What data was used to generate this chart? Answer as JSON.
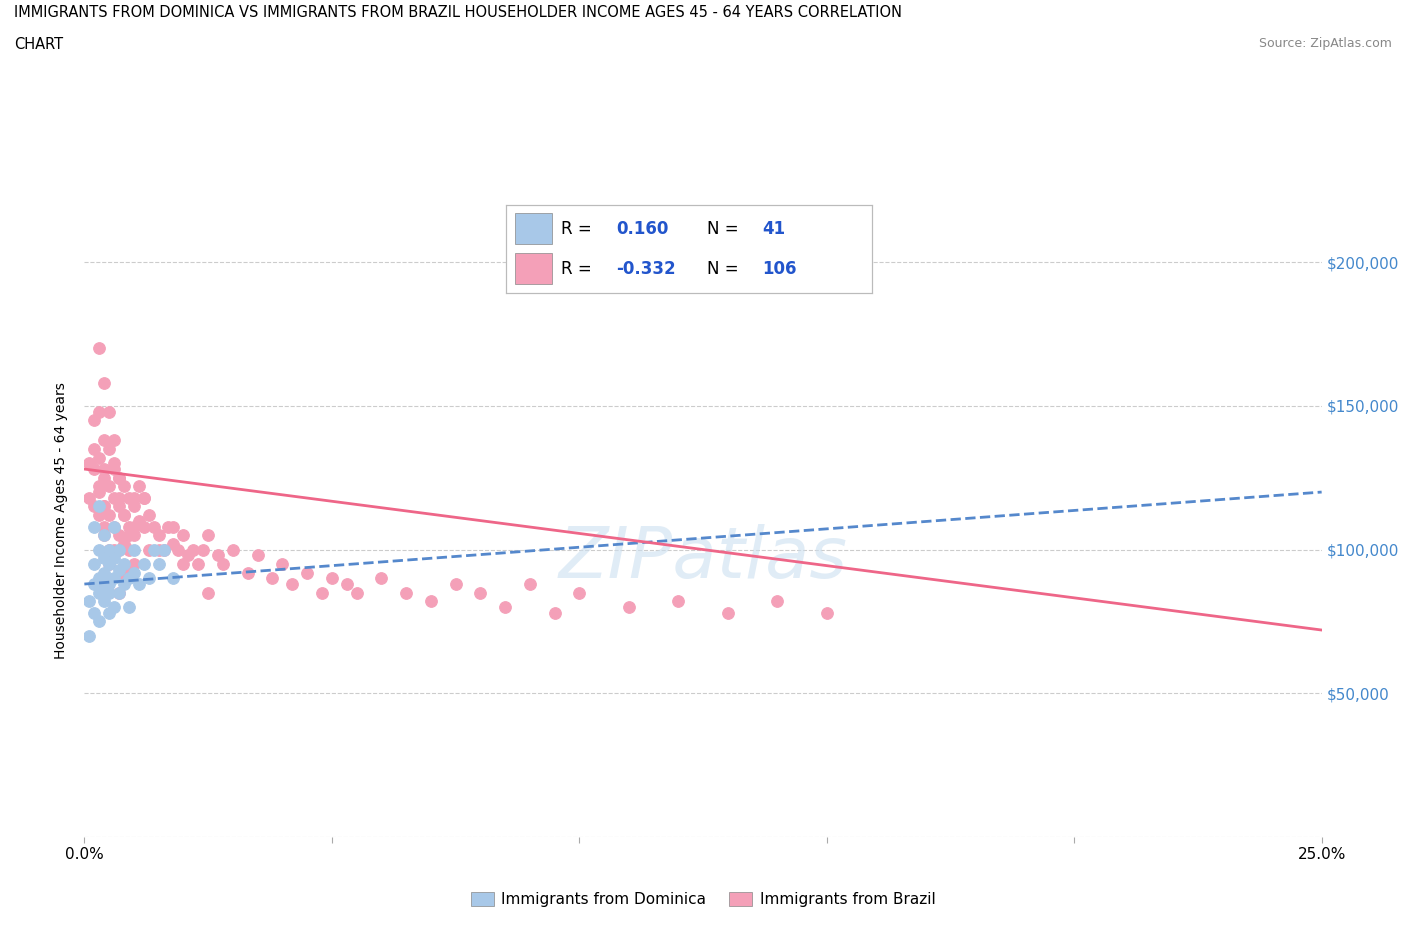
{
  "title_line1": "IMMIGRANTS FROM DOMINICA VS IMMIGRANTS FROM BRAZIL HOUSEHOLDER INCOME AGES 45 - 64 YEARS CORRELATION",
  "title_line2": "CHART",
  "source_text": "Source: ZipAtlas.com",
  "ylabel": "Householder Income Ages 45 - 64 years",
  "xlim": [
    0.0,
    0.25
  ],
  "ylim": [
    0,
    220000
  ],
  "yticks": [
    0,
    50000,
    100000,
    150000,
    200000
  ],
  "ytick_labels": [
    "",
    "$50,000",
    "$100,000",
    "$150,000",
    "$200,000"
  ],
  "xticks": [
    0.0,
    0.05,
    0.1,
    0.15,
    0.2,
    0.25
  ],
  "xtick_labels": [
    "0.0%",
    "",
    "",
    "",
    "",
    "25.0%"
  ],
  "dominica_R": 0.16,
  "dominica_N": 41,
  "brazil_R": -0.332,
  "brazil_N": 106,
  "dominica_color": "#a8c8e8",
  "brazil_color": "#f4a0b8",
  "dominica_line_color": "#5588cc",
  "brazil_line_color": "#ee6688",
  "background_color": "#ffffff",
  "grid_color": "#cccccc",
  "dominica_x": [
    0.001,
    0.001,
    0.002,
    0.002,
    0.002,
    0.002,
    0.003,
    0.003,
    0.003,
    0.003,
    0.003,
    0.004,
    0.004,
    0.004,
    0.004,
    0.004,
    0.005,
    0.005,
    0.005,
    0.005,
    0.005,
    0.006,
    0.006,
    0.006,
    0.006,
    0.007,
    0.007,
    0.007,
    0.008,
    0.008,
    0.009,
    0.009,
    0.01,
    0.01,
    0.011,
    0.012,
    0.013,
    0.014,
    0.015,
    0.016,
    0.018
  ],
  "dominica_y": [
    82000,
    70000,
    95000,
    88000,
    78000,
    108000,
    90000,
    100000,
    85000,
    115000,
    75000,
    92000,
    82000,
    97000,
    88000,
    105000,
    85000,
    95000,
    78000,
    100000,
    88000,
    90000,
    80000,
    97000,
    108000,
    85000,
    93000,
    100000,
    88000,
    95000,
    90000,
    80000,
    92000,
    100000,
    88000,
    95000,
    90000,
    100000,
    95000,
    100000,
    90000
  ],
  "brazil_x": [
    0.001,
    0.001,
    0.002,
    0.002,
    0.002,
    0.003,
    0.003,
    0.003,
    0.003,
    0.004,
    0.004,
    0.004,
    0.004,
    0.004,
    0.005,
    0.005,
    0.005,
    0.005,
    0.006,
    0.006,
    0.006,
    0.006,
    0.007,
    0.007,
    0.007,
    0.007,
    0.008,
    0.008,
    0.008,
    0.009,
    0.009,
    0.009,
    0.01,
    0.01,
    0.01,
    0.011,
    0.011,
    0.012,
    0.012,
    0.013,
    0.013,
    0.014,
    0.015,
    0.016,
    0.017,
    0.018,
    0.019,
    0.02,
    0.021,
    0.022,
    0.023,
    0.024,
    0.025,
    0.027,
    0.028,
    0.03,
    0.033,
    0.035,
    0.038,
    0.04,
    0.042,
    0.045,
    0.048,
    0.05,
    0.053,
    0.055,
    0.06,
    0.065,
    0.07,
    0.075,
    0.08,
    0.085,
    0.09,
    0.095,
    0.1,
    0.11,
    0.12,
    0.13,
    0.14,
    0.15,
    0.003,
    0.004,
    0.005,
    0.006,
    0.007,
    0.008,
    0.009,
    0.01,
    0.012,
    0.015,
    0.018,
    0.02,
    0.025,
    0.003,
    0.005,
    0.007,
    0.004,
    0.006,
    0.008,
    0.01,
    0.002,
    0.003,
    0.004,
    0.005,
    0.007,
    0.009
  ],
  "brazil_y": [
    130000,
    118000,
    145000,
    128000,
    115000,
    148000,
    132000,
    122000,
    112000,
    138000,
    125000,
    115000,
    105000,
    128000,
    135000,
    122000,
    112000,
    100000,
    130000,
    118000,
    108000,
    128000,
    125000,
    115000,
    105000,
    118000,
    122000,
    112000,
    102000,
    118000,
    108000,
    100000,
    115000,
    105000,
    118000,
    110000,
    122000,
    108000,
    118000,
    112000,
    100000,
    108000,
    105000,
    100000,
    108000,
    102000,
    100000,
    105000,
    98000,
    100000,
    95000,
    100000,
    105000,
    98000,
    95000,
    100000,
    92000,
    98000,
    90000,
    95000,
    88000,
    92000,
    85000,
    90000,
    88000,
    85000,
    90000,
    85000,
    82000,
    88000,
    85000,
    80000,
    88000,
    78000,
    85000,
    80000,
    82000,
    78000,
    82000,
    78000,
    170000,
    158000,
    148000,
    138000,
    125000,
    112000,
    105000,
    108000,
    118000,
    100000,
    108000,
    95000,
    85000,
    88000,
    95000,
    85000,
    115000,
    100000,
    90000,
    95000,
    135000,
    120000,
    108000,
    98000,
    100000,
    92000
  ],
  "dom_trend_x": [
    0.0,
    0.25
  ],
  "dom_trend_y": [
    88000,
    120000
  ],
  "bra_trend_x": [
    0.0,
    0.25
  ],
  "bra_trend_y": [
    128000,
    72000
  ]
}
